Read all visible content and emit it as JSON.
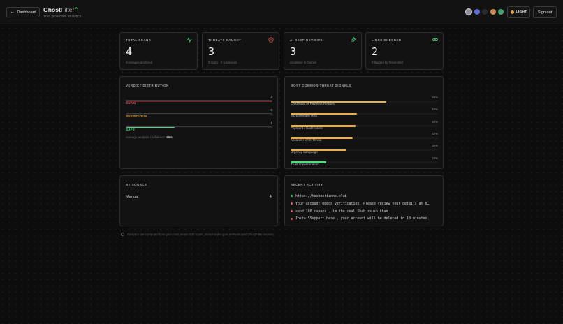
{
  "header": {
    "back_label": "Dashboard",
    "brand_bold": "Ghost",
    "brand_light": "Filter",
    "brand_badge": "AI",
    "subtitle": "Your protection analytics",
    "theme_label": "LIGHT",
    "signout_label": "Sign out",
    "swatches": [
      "#8a8f99",
      "#5b6bd1",
      "#2a2a2a",
      "#c98a55",
      "#46a070"
    ],
    "accent_color": "#4ade80"
  },
  "stats": [
    {
      "label": "TOTAL SCANS",
      "value": "4",
      "sub": "messages analyzed",
      "icon": "activity-icon",
      "icon_color": "#4ade80"
    },
    {
      "label": "THREATS CAUGHT",
      "value": "3",
      "sub": "3 scam · 0 suspicious",
      "icon": "alert-circle-icon",
      "icon_color": "#f05252"
    },
    {
      "label": "AI DEEP-REVIEWS",
      "value": "3",
      "sub": "escalated to Gemini",
      "icon": "sparkle-icon",
      "icon_color": "#4ade80"
    },
    {
      "label": "LINKS CHECKED",
      "value": "2",
      "sub": "0 flagged by threat intel",
      "icon": "link-icon",
      "icon_color": "#4ade80"
    }
  ],
  "verdict": {
    "title": "VERDICT DISTRIBUTION",
    "rows": [
      {
        "label": "SCAM",
        "count": "3",
        "fraction": 1.0,
        "color": "#e05c6b"
      },
      {
        "label": "SUSPICIOUS",
        "count": "0",
        "fraction": 0.0,
        "color": "#e8a23b"
      },
      {
        "label": "SAFE",
        "count": "1",
        "fraction": 0.33,
        "color": "#4ade80"
      }
    ],
    "confidence_prefix": "Average analysis confidence:",
    "confidence_value": "95%"
  },
  "signals": {
    "title": "MOST COMMON THREAT SIGNALS",
    "rows": [
      {
        "label": "Credential or Payment Request",
        "pct": "65%",
        "fraction": 0.65,
        "color": "#e8b04a"
      },
      {
        "label": "ML Ensemble Risk",
        "pct": "45%",
        "fraction": 0.45,
        "color": "#e8b04a"
      },
      {
        "label": "Payment / Code Intent",
        "pct": "44%",
        "fraction": 0.44,
        "color": "#e8b04a"
      },
      {
        "label": "Account / KYC Threat",
        "pct": "42%",
        "fraction": 0.42,
        "color": "#e8b04a"
      },
      {
        "label": "Urgency Language",
        "pct": "38%",
        "fraction": 0.38,
        "color": "#e8b04a"
      },
      {
        "label": "Trust Impersonation",
        "pct": "24%",
        "fraction": 0.24,
        "color": "#4ade80"
      }
    ]
  },
  "sources": {
    "title": "BY SOURCE",
    "rows": [
      {
        "name": "Manual",
        "count": "4"
      }
    ]
  },
  "activity": {
    "title": "RECENT ACTIVITY",
    "items": [
      {
        "text": "https://technorizons.club",
        "color": "#4ade80"
      },
      {
        "text": "Your account needs verification. Please review your details at h…",
        "color": "#e05c6b"
      },
      {
        "text": "send 100 rupees , im the real Shah reukh khan",
        "color": "#e05c6b"
      },
      {
        "text": "Insta SSupport here , your account will be deleted in 10 minutes…",
        "color": "#e05c6b"
      }
    ]
  },
  "footnote": "Analytics are computed from your most recent 500 scans, stored under your authenticated GhostFilter session."
}
